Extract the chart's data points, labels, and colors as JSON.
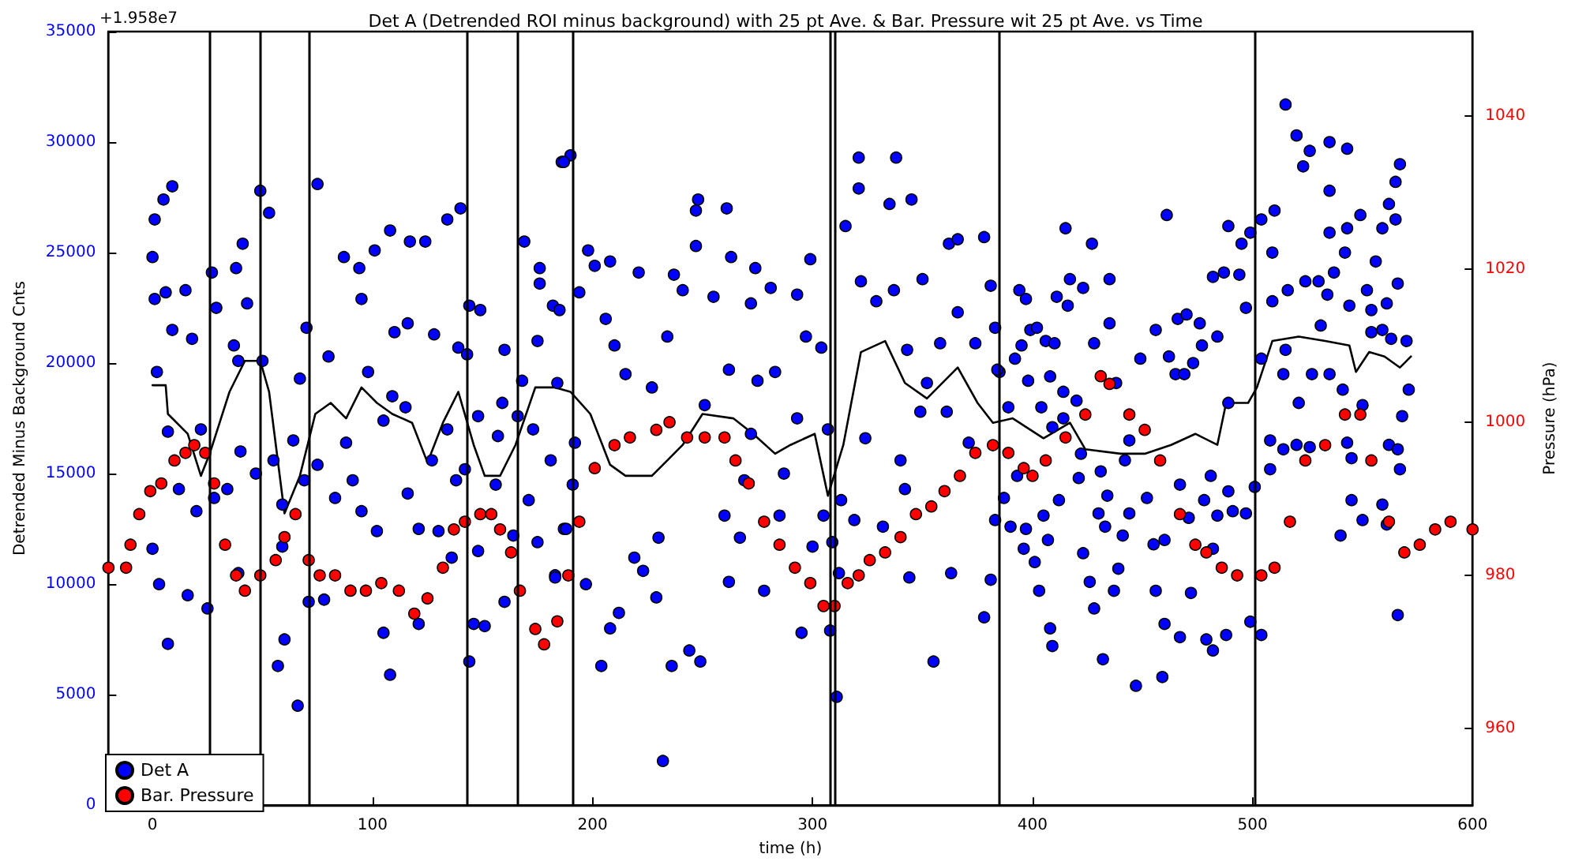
{
  "chart_data": {
    "type": "scatter",
    "title": "Det A (Detrended ROI minus background) with 25 pt Ave. & Bar. Pressure wit 25 pt Ave. vs Time",
    "xlabel": "time (h)",
    "ylabel": "Detrended Minus Background Cnts",
    "y2label": "Pressure (hPa)",
    "annotations": [
      "+1.958e7"
    ],
    "xlim": [
      -20,
      600
    ],
    "xticks": [
      0,
      100,
      200,
      300,
      400,
      500,
      600
    ],
    "ylim": [
      0,
      35000
    ],
    "yticks": [
      0,
      5000,
      10000,
      15000,
      20000,
      25000,
      30000,
      35000
    ],
    "y2lim": [
      950,
      1051
    ],
    "y2ticks": [
      960,
      980,
      1000,
      1020,
      1040
    ],
    "grid": false,
    "legend": "bottom left",
    "marker": "circle",
    "ref_lines": [
      {
        "axis": "x",
        "value": 26,
        "color": "#000000"
      },
      {
        "axis": "x",
        "value": 49,
        "color": "#000000"
      },
      {
        "axis": "x",
        "value": 71,
        "color": "#000000"
      },
      {
        "axis": "x",
        "value": 143,
        "color": "#000000"
      },
      {
        "axis": "x",
        "value": 166,
        "color": "#000000"
      },
      {
        "axis": "x",
        "value": 191,
        "color": "#000000"
      },
      {
        "axis": "x",
        "value": 308,
        "color": "#000000"
      },
      {
        "axis": "x",
        "value": 310,
        "color": "#000000"
      },
      {
        "axis": "x",
        "value": 385,
        "color": "#000000"
      },
      {
        "axis": "x",
        "value": 501,
        "color": "#000000"
      }
    ],
    "series": [
      {
        "name": "Det A",
        "color": "#0000ff",
        "x": [
          0,
          1,
          5,
          9,
          1,
          6,
          2,
          9,
          15,
          18,
          7,
          12,
          22,
          20,
          0,
          3,
          16,
          25,
          7,
          27,
          29,
          41,
          38,
          37,
          43,
          39,
          40,
          34,
          28,
          47,
          49,
          53,
          50,
          55,
          59,
          59,
          60,
          57,
          66,
          39,
          71,
          78,
          75,
          70,
          80,
          67,
          69,
          75,
          64,
          87,
          94,
          95,
          101,
          108,
          117,
          110,
          98,
          109,
          105,
          88,
          83,
          91,
          95,
          102,
          115,
          116,
          121,
          127,
          130,
          138,
          134,
          128,
          139,
          143,
          134,
          140,
          124,
          116,
          144,
          149,
          148,
          142,
          148,
          146,
          151,
          144,
          136,
          121,
          105,
          108,
          160,
          159,
          157,
          156,
          160,
          164,
          169,
          176,
          176,
          175,
          182,
          185,
          168,
          173,
          171,
          175,
          181,
          184,
          183,
          186,
          187,
          166,
          190,
          187,
          194,
          198,
          201,
          208,
          192,
          191,
          188,
          197,
          183,
          206,
          215,
          210,
          208,
          204,
          212,
          219,
          223,
          221,
          227,
          229,
          237,
          241,
          234,
          230,
          236,
          244,
          249,
          232,
          247,
          248,
          247,
          251,
          255,
          261,
          263,
          262,
          260,
          262,
          267,
          272,
          274,
          275,
          272,
          269,
          278,
          281,
          283,
          287,
          285,
          293,
          297,
          293,
          299,
          300,
          295,
          304,
          307,
          305,
          309,
          308,
          312,
          313,
          311,
          315,
          321,
          321,
          322,
          329,
          335,
          338,
          345,
          337,
          343,
          350,
          362,
          366,
          378,
          381,
          366,
          358,
          374,
          385,
          324,
          319,
          332,
          340,
          342,
          352,
          361,
          371,
          383,
          378,
          381,
          363,
          355,
          344,
          349,
          415,
          427,
          417,
          423,
          435,
          394,
          397,
          411,
          416,
          399,
          402,
          395,
          406,
          410,
          435,
          428,
          392,
          398,
          408,
          414,
          383,
          384,
          389,
          404,
          409,
          414,
          420,
          438,
          449,
          461,
          456,
          462,
          466,
          470,
          476,
          477,
          482,
          487,
          489,
          494,
          495,
          499,
          504,
          510,
          497,
          509,
          509,
          484,
          465,
          469,
          473,
          489,
          504,
          515,
          520,
          526,
          523,
          535,
          543,
          535,
          535,
          543,
          542,
          549,
          559,
          562,
          565,
          567,
          565,
          516,
          524,
          530,
          534,
          537,
          552,
          554,
          556,
          561,
          566,
          570,
          515,
          531,
          544,
          554,
          559,
          563,
          571,
          568,
          514,
          521,
          527,
          535,
          541,
          550,
          508,
          514,
          520,
          526,
          543,
          545,
          562,
          566,
          567,
          545,
          540,
          550,
          559,
          561,
          566,
          508,
          501,
          497,
          489,
          491,
          481,
          478,
          484,
          499,
          504,
          482,
          488,
          482,
          479,
          472,
          467,
          460,
          459,
          447,
          456,
          460,
          455,
          467,
          471,
          452,
          432,
          437,
          428,
          426,
          423,
          439,
          441,
          444,
          430,
          433,
          434,
          409,
          408,
          403,
          401,
          396,
          397,
          407,
          405,
          390,
          387,
          412,
          393,
          421,
          422,
          431,
          442,
          444
        ],
        "values": [
          24800,
          26500,
          27400,
          28000,
          22900,
          23200,
          19600,
          21500,
          23300,
          21100,
          16900,
          14300,
          17000,
          13300,
          11600,
          10000,
          9500,
          8900,
          7300,
          24100,
          22500,
          25400,
          24300,
          20800,
          22700,
          20100,
          16000,
          14300,
          13900,
          15000,
          27800,
          26800,
          20100,
          15600,
          13600,
          11700,
          7500,
          6300,
          4500,
          10500,
          9200,
          9300,
          28100,
          21600,
          20300,
          19300,
          14700,
          15400,
          16500,
          24800,
          24300,
          22900,
          25100,
          26000,
          25500,
          21400,
          19600,
          18500,
          17400,
          16400,
          13900,
          14700,
          13300,
          12400,
          18000,
          14100,
          12500,
          15600,
          12400,
          14700,
          17000,
          21300,
          20700,
          20400,
          26500,
          27000,
          25500,
          21800,
          22600,
          22400,
          17600,
          15200,
          11500,
          8200,
          8100,
          6500,
          11200,
          8200,
          7800,
          5900,
          20600,
          18200,
          16700,
          14500,
          9200,
          12200,
          25500,
          24300,
          23600,
          21000,
          22600,
          22400,
          19200,
          17000,
          13800,
          11900,
          15600,
          19100,
          10400,
          29100,
          12500,
          17600,
          29400,
          29100,
          23200,
          25100,
          24400,
          24600,
          16400,
          14500,
          12500,
          10000,
          10300,
          22000,
          19500,
          20800,
          8000,
          6300,
          8700,
          11200,
          10600,
          24100,
          18900,
          9400,
          24000,
          23300,
          21200,
          12100,
          6300,
          7000,
          6500,
          2000,
          26900,
          27400,
          25300,
          18100,
          23000,
          27000,
          24800,
          19700,
          13100,
          10100,
          12100,
          22700,
          24300,
          19200,
          16800,
          14700,
          9700,
          23400,
          19600,
          15000,
          13100,
          23100,
          21200,
          17500,
          24700,
          11700,
          7800,
          20700,
          17000,
          13100,
          11900,
          7900,
          10500,
          13800,
          4900,
          26200,
          29300,
          27900,
          23700,
          22800,
          27200,
          29300,
          27400,
          23300,
          20600,
          23800,
          25400,
          25600,
          25700,
          23500,
          22300,
          20900,
          20900,
          19600,
          16600,
          12900,
          12600,
          15600,
          14300,
          19100,
          17800,
          16400,
          12900,
          8500,
          10200,
          10500,
          6500,
          10300,
          17800,
          26100,
          25400,
          23800,
          23400,
          23800,
          23300,
          22900,
          23000,
          22600,
          21500,
          21600,
          20800,
          21000,
          20900,
          21800,
          20900,
          20200,
          19200,
          19400,
          18700,
          21600,
          19700,
          18000,
          18000,
          17100,
          17500,
          18300,
          19100,
          20200,
          26700,
          21500,
          20300,
          22000,
          22200,
          21800,
          20800,
          23900,
          24100,
          26200,
          24000,
          25400,
          25900,
          26500,
          26900,
          22500,
          22800,
          25000,
          21200,
          19500,
          19500,
          20000,
          18200,
          20200,
          31700,
          30300,
          29600,
          28900,
          30000,
          29700,
          27800,
          25900,
          26100,
          25000,
          26700,
          26100,
          27200,
          28200,
          29000,
          26500,
          23300,
          23700,
          23700,
          23100,
          24100,
          23300,
          22400,
          24600,
          22700,
          23600,
          21000,
          20600,
          21700,
          22600,
          21400,
          21500,
          21100,
          18800,
          17600,
          19500,
          18200,
          19500,
          19500,
          18800,
          18100,
          16500,
          16100,
          16300,
          16200,
          16400,
          15700,
          16300,
          16100,
          15200,
          13800,
          12200,
          12900,
          13600,
          12700,
          8600,
          15200,
          14400,
          13200,
          14200,
          13300,
          14900,
          13800,
          13100,
          8300,
          7700,
          11600,
          7700,
          7000,
          7500,
          9600,
          7600,
          8200,
          5800,
          5400,
          9700,
          12000,
          11800,
          14500,
          13000,
          13900,
          6600,
          9700,
          8900,
          10100,
          11400,
          10700,
          12200,
          13200,
          13200,
          12600,
          14000,
          7200,
          8000,
          9700,
          11000,
          11600,
          12500,
          12000,
          13100,
          12600,
          13900,
          13800,
          14900,
          14800,
          15900,
          15100,
          15600,
          16500
        ]
      },
      {
        "type": "line",
        "color": "#000000",
        "marker": "none",
        "x": [
          0,
          6,
          7,
          16,
          22,
          26,
          35,
          42,
          49,
          53,
          60,
          67,
          74,
          81,
          88,
          95,
          102,
          109,
          118,
          125,
          132,
          139,
          146,
          151,
          158,
          165,
          174,
          183,
          190,
          199,
          208,
          215,
          227,
          234,
          241,
          250,
          264,
          273,
          283,
          290,
          301,
          307,
          314,
          322,
          333,
          342,
          352,
          366,
          375,
          382,
          391,
          405,
          417,
          424,
          440,
          451,
          463,
          474,
          484,
          488,
          498,
          502,
          509,
          521,
          533,
          544,
          547,
          553,
          560,
          567,
          572
        ],
        "values": [
          19000,
          19000,
          17700,
          16800,
          14900,
          15900,
          18700,
          20100,
          20100,
          18700,
          13200,
          14900,
          17700,
          18200,
          17500,
          18900,
          18200,
          17700,
          17300,
          15500,
          17300,
          18700,
          16300,
          14900,
          14900,
          16300,
          18900,
          18900,
          18700,
          17700,
          15400,
          14900,
          14900,
          15600,
          16300,
          17700,
          17500,
          16800,
          15900,
          16300,
          16800,
          14000,
          16300,
          20500,
          21000,
          19100,
          18400,
          19800,
          18200,
          17300,
          17500,
          16600,
          17300,
          16100,
          15900,
          15900,
          16300,
          16800,
          16300,
          18200,
          18200,
          18900,
          21000,
          21200,
          21000,
          20800,
          19600,
          20500,
          20300,
          19800,
          20300
        ]
      },
      {
        "name": "Bar. Pressure",
        "color": "#ff0000",
        "axis": "y2",
        "x": [
          -20,
          -12,
          -10,
          -6,
          -1,
          4,
          10,
          15,
          19,
          24,
          28,
          33,
          38,
          42,
          49,
          56,
          60,
          65,
          71,
          76,
          83,
          90,
          97,
          104,
          112,
          119,
          125,
          132,
          137,
          142,
          149,
          154,
          158,
          163,
          167,
          174,
          178,
          184,
          189,
          194,
          201,
          210,
          217,
          229,
          235,
          243,
          251,
          260,
          265,
          271,
          278,
          285,
          292,
          299,
          305,
          310,
          316,
          321,
          326,
          333,
          340,
          347,
          354,
          360,
          367,
          374,
          382,
          389,
          396,
          400,
          406,
          415,
          424,
          431,
          435,
          444,
          451,
          458,
          467,
          474,
          479,
          486,
          493,
          504,
          510,
          517,
          524,
          533,
          542,
          549,
          554,
          562,
          569,
          576,
          583,
          590,
          600
        ],
        "values": [
          981,
          981,
          984,
          988,
          991,
          992,
          995,
          996,
          997,
          996,
          992,
          984,
          980,
          978,
          980,
          982,
          985,
          988,
          982,
          980,
          980,
          978,
          978,
          979,
          978,
          975,
          977,
          981,
          986,
          987,
          988,
          988,
          986,
          983,
          978,
          973,
          971,
          974,
          980,
          987,
          994,
          997,
          998,
          999,
          1000,
          998,
          998,
          998,
          995,
          992,
          987,
          984,
          981,
          979,
          976,
          976,
          979,
          980,
          982,
          983,
          985,
          988,
          989,
          991,
          993,
          996,
          997,
          996,
          994,
          993,
          995,
          998,
          1001,
          1006,
          1005,
          1001,
          999,
          995,
          988,
          984,
          983,
          981,
          980,
          980,
          981,
          987,
          995,
          997,
          1001,
          1001,
          995,
          987,
          983,
          984,
          986,
          987,
          986
        ]
      }
    ]
  }
}
